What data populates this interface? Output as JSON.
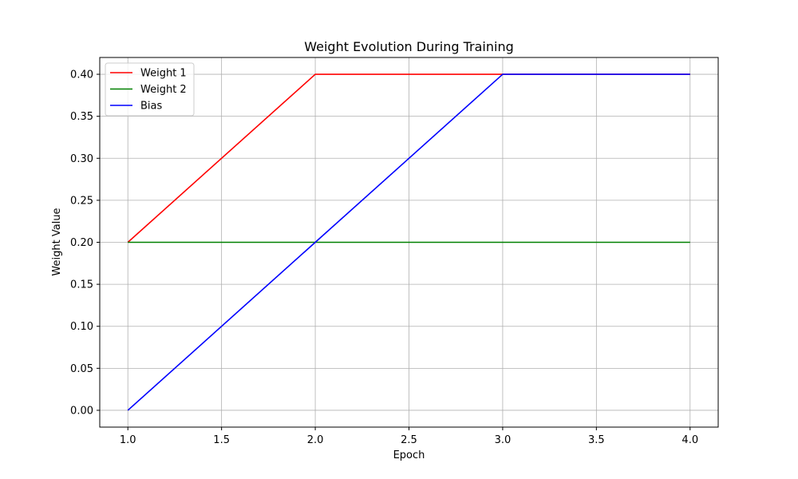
{
  "chart_data": {
    "type": "line",
    "title": "Weight Evolution During Training",
    "xlabel": "Epoch",
    "ylabel": "Weight Value",
    "xlim": [
      0.85,
      4.15
    ],
    "ylim": [
      -0.02,
      0.42
    ],
    "x_ticks": [
      "1.0",
      "1.5",
      "2.0",
      "2.5",
      "3.0",
      "3.5",
      "4.0"
    ],
    "y_ticks": [
      "0.00",
      "0.05",
      "0.10",
      "0.15",
      "0.20",
      "0.25",
      "0.30",
      "0.35",
      "0.40"
    ],
    "grid": true,
    "legend_position": "top-left",
    "x": [
      1,
      2,
      3,
      4
    ],
    "series": [
      {
        "name": "Weight 1",
        "color": "#ff0000",
        "values": [
          0.2,
          0.4,
          0.4,
          0.4
        ]
      },
      {
        "name": "Weight 2",
        "color": "#008000",
        "values": [
          0.2,
          0.2,
          0.2,
          0.2
        ]
      },
      {
        "name": "Bias",
        "color": "#0000ff",
        "values": [
          0.0,
          0.2,
          0.4,
          0.4
        ]
      }
    ]
  }
}
